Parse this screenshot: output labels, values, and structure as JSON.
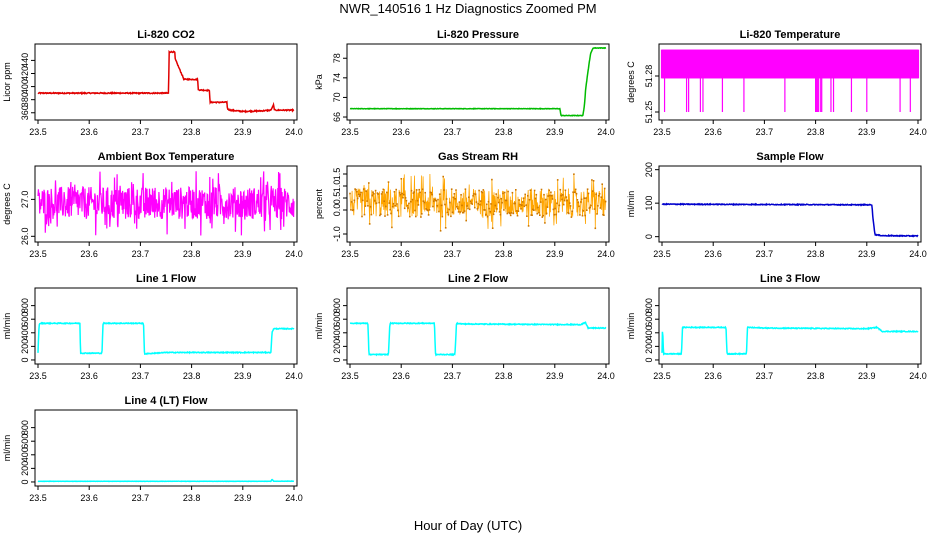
{
  "figure": {
    "title": "NWR_140516  1 Hz Diagnostics Zoomed PM",
    "xlabel": "Hour of Day (UTC)"
  },
  "chart_data": [
    {
      "type": "line",
      "title": "Li-820 CO2",
      "ylabel": "Licor ppm",
      "xlim": [
        23.5,
        24.0
      ],
      "ylim": [
        352,
        462
      ],
      "xticks": [
        23.5,
        23.6,
        23.7,
        23.8,
        23.9,
        24.0
      ],
      "yticks": [
        360,
        380,
        400,
        420,
        440
      ],
      "color": "#e00000",
      "noise": 0.8,
      "series": [
        {
          "x": [
            23.5,
            23.755,
            23.756,
            23.767,
            23.768,
            23.784,
            23.785,
            23.812,
            23.813,
            23.835,
            23.836,
            23.869,
            23.87,
            23.875,
            23.9,
            23.94,
            23.955,
            23.96,
            23.962,
            24.0
          ],
          "y": [
            390,
            390,
            453,
            453,
            442,
            413,
            411,
            411,
            395,
            394,
            376,
            376,
            366,
            364,
            362,
            363,
            364,
            372,
            364,
            364
          ]
        }
      ]
    },
    {
      "type": "line",
      "title": "Li-820 Pressure",
      "ylabel": "kPa",
      "xlim": [
        23.5,
        24.0
      ],
      "ylim": [
        65.8,
        80.5
      ],
      "xticks": [
        23.5,
        23.6,
        23.7,
        23.8,
        23.9,
        24.0
      ],
      "yticks": [
        66,
        70,
        74,
        78
      ],
      "color": "#00bb00",
      "noise": 0.05,
      "series": [
        {
          "x": [
            23.5,
            23.91,
            23.912,
            23.955,
            23.958,
            23.96,
            23.965,
            23.97,
            23.975,
            24.0
          ],
          "y": [
            67.7,
            67.7,
            66.3,
            66.3,
            68.5,
            71.5,
            75.5,
            79.0,
            80.1,
            80.1
          ]
        }
      ]
    },
    {
      "type": "line",
      "title": "Li-820 Temperature",
      "ylabel": "degrees C",
      "xlim": [
        23.5,
        24.0
      ],
      "ylim": [
        51.245,
        51.305
      ],
      "xticks": [
        23.5,
        23.6,
        23.7,
        23.8,
        23.9,
        24.0
      ],
      "yticks": [
        51.25,
        51.28
      ],
      "ytick_labels": [
        "51.25",
        "51.28"
      ],
      "color": "#ff00ff",
      "style": "quantized",
      "levels": [
        51.278,
        51.302
      ],
      "dips": [
        23.505,
        23.548,
        23.552,
        23.575,
        23.58,
        23.618,
        23.66,
        23.74,
        23.8,
        23.802,
        23.804,
        23.806,
        23.81,
        23.812,
        23.83,
        23.835,
        23.87,
        23.9,
        23.965,
        23.985
      ],
      "dip_value": 51.25
    },
    {
      "type": "line",
      "title": "Ambient Box Temperature",
      "ylabel": "degrees C",
      "xlim": [
        23.5,
        24.0
      ],
      "ylim": [
        25.9,
        27.85
      ],
      "xticks": [
        23.5,
        23.6,
        23.7,
        23.8,
        23.9,
        24.0
      ],
      "yticks": [
        26.0,
        27.0
      ],
      "ytick_labels": [
        "26.0",
        "27.0"
      ],
      "color": "#ff00ff",
      "style": "noisy",
      "series": [
        {
          "x": [
            23.5,
            24.0
          ],
          "y": [
            26.9,
            26.9
          ]
        }
      ],
      "noise": 0.55
    },
    {
      "type": "scatter",
      "title": "Gas Stream RH",
      "ylabel": "percent",
      "xlim": [
        23.5,
        24.0
      ],
      "ylim": [
        -1.25,
        1.75
      ],
      "xticks": [
        23.5,
        23.6,
        23.7,
        23.8,
        23.9,
        24.0
      ],
      "yticks": [
        -1.0,
        0.0,
        0.5,
        1.0,
        1.5
      ],
      "ytick_labels": [
        "-1.0",
        "0.0",
        "0.5",
        "1.0",
        "1.5"
      ],
      "color": "#ffa500",
      "style": "noisy",
      "series": [
        {
          "x": [
            23.5,
            24.0
          ],
          "y": [
            0.3,
            0.3
          ]
        }
      ],
      "noise": 0.75
    },
    {
      "type": "line",
      "title": "Sample Flow",
      "ylabel": "ml/min",
      "xlim": [
        23.5,
        24.0
      ],
      "ylim": [
        -10,
        205
      ],
      "xticks": [
        23.5,
        23.6,
        23.7,
        23.8,
        23.9,
        24.0
      ],
      "yticks": [
        0,
        100,
        200
      ],
      "color": "#0000cc",
      "noise": 1.2,
      "series": [
        {
          "x": [
            23.5,
            23.91,
            23.912,
            23.916,
            23.93,
            24.0
          ],
          "y": [
            97,
            95,
            55,
            6,
            3,
            2
          ]
        }
      ]
    },
    {
      "type": "line",
      "title": "Line 1 Flow",
      "ylabel": "ml/min",
      "xlim": [
        23.5,
        24.0
      ],
      "ylim": [
        -30,
        1030
      ],
      "xticks": [
        23.5,
        23.6,
        23.7,
        23.8,
        23.9,
        24.0
      ],
      "yticks": [
        0,
        200,
        400,
        600,
        800
      ],
      "color": "#00ffff",
      "noise": 6,
      "series": [
        {
          "x": [
            23.5,
            23.502,
            23.505,
            23.582,
            23.583,
            23.625,
            23.627,
            23.706,
            23.708,
            23.75,
            23.955,
            23.957,
            23.96,
            24.0
          ],
          "y": [
            100,
            520,
            540,
            540,
            100,
            100,
            540,
            540,
            90,
            110,
            110,
            400,
            460,
            460
          ]
        }
      ]
    },
    {
      "type": "line",
      "title": "Line 2 Flow",
      "ylabel": "ml/min",
      "xlim": [
        23.5,
        24.0
      ],
      "ylim": [
        -30,
        1030
      ],
      "xticks": [
        23.5,
        23.6,
        23.7,
        23.8,
        23.9,
        24.0
      ],
      "yticks": [
        0,
        200,
        400,
        600,
        800
      ],
      "color": "#00ffff",
      "noise": 6,
      "series": [
        {
          "x": [
            23.5,
            23.535,
            23.537,
            23.575,
            23.578,
            23.665,
            23.667,
            23.705,
            23.708,
            23.72,
            23.95,
            23.96,
            23.965,
            24.0
          ],
          "y": [
            540,
            540,
            80,
            80,
            540,
            540,
            80,
            80,
            540,
            530,
            520,
            550,
            470,
            470
          ]
        }
      ]
    },
    {
      "type": "line",
      "title": "Line 3 Flow",
      "ylabel": "ml/min",
      "xlim": [
        23.5,
        24.0
      ],
      "ylim": [
        -30,
        1030
      ],
      "xticks": [
        23.5,
        23.6,
        23.7,
        23.8,
        23.9,
        24.0
      ],
      "yticks": [
        0,
        200,
        400,
        600,
        800
      ],
      "color": "#00ffff",
      "noise": 6,
      "series": [
        {
          "x": [
            23.5,
            23.501,
            23.503,
            23.538,
            23.54,
            23.625,
            23.627,
            23.665,
            23.667,
            23.7,
            23.9,
            23.92,
            23.93,
            24.0
          ],
          "y": [
            100,
            480,
            90,
            90,
            480,
            480,
            90,
            90,
            480,
            470,
            460,
            480,
            420,
            420
          ]
        }
      ]
    },
    {
      "type": "line",
      "title": "Line 4 (LT) Flow",
      "ylabel": "ml/min",
      "xlim": [
        23.5,
        24.0
      ],
      "ylim": [
        -30,
        1030
      ],
      "xticks": [
        23.5,
        23.6,
        23.7,
        23.8,
        23.9,
        24.0
      ],
      "yticks": [
        0,
        200,
        400,
        600,
        800
      ],
      "color": "#00ffff",
      "noise": 2,
      "series": [
        {
          "x": [
            23.5,
            23.955,
            23.957,
            23.96,
            24.0
          ],
          "y": [
            10,
            10,
            40,
            12,
            12
          ]
        }
      ]
    }
  ]
}
